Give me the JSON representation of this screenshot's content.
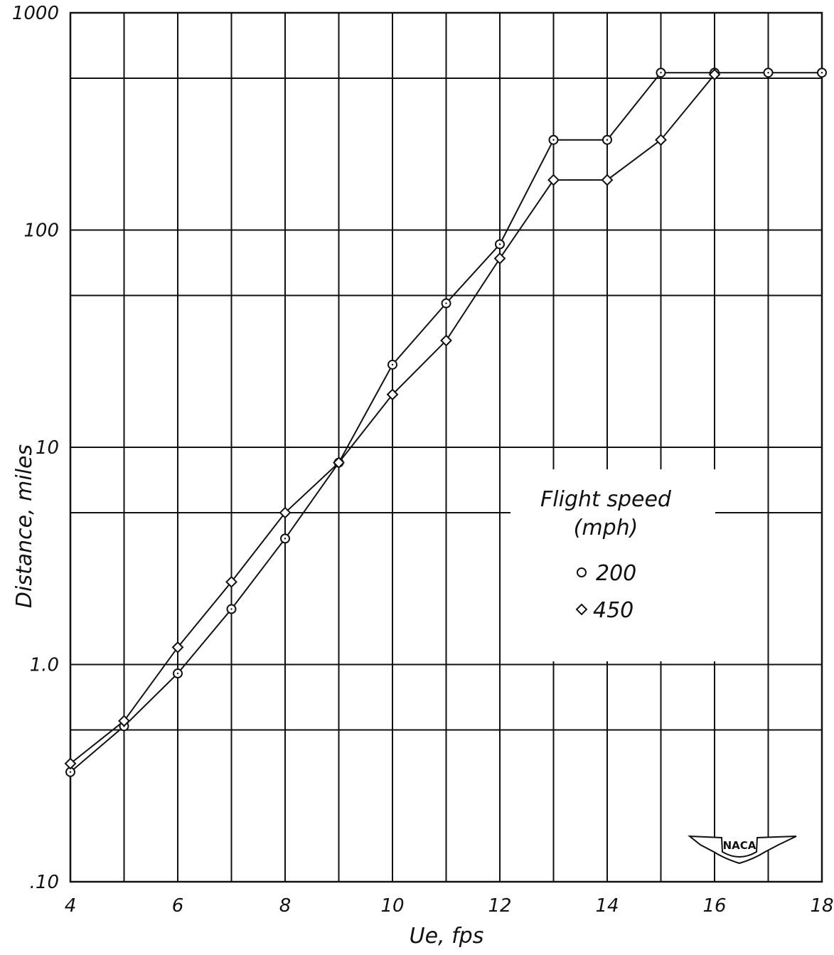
{
  "chart_data": {
    "type": "line",
    "title": "",
    "xlabel": "Ue, fps",
    "ylabel": "Distance, miles",
    "xlim": [
      4,
      18
    ],
    "ylim": [
      0.1,
      1000
    ],
    "y_scale": "log",
    "grid": true,
    "x_ticks": [
      4,
      6,
      8,
      10,
      12,
      14,
      16,
      18
    ],
    "x_tick_labels": [
      "4",
      "6",
      "8",
      "10",
      "12",
      "14",
      "16",
      "18"
    ],
    "y_ticks": [
      0.1,
      1,
      10,
      100,
      1000
    ],
    "y_tick_labels": [
      ".10",
      "1.0",
      "10",
      "100",
      "1000"
    ],
    "legend": {
      "title_line1": "Flight speed",
      "title_line2": "(mph)",
      "placement": "center-right"
    },
    "series": [
      {
        "name": "200",
        "marker": "circle",
        "x": [
          4,
          5,
          6,
          7,
          8,
          9,
          10,
          11,
          12,
          13,
          14,
          15,
          16,
          17,
          18
        ],
        "y": [
          0.32,
          0.52,
          0.91,
          1.8,
          3.8,
          8.5,
          24,
          46,
          86,
          260,
          260,
          530,
          530,
          530,
          530
        ]
      },
      {
        "name": "450",
        "marker": "diamond",
        "x": [
          4,
          5,
          6,
          7,
          8,
          9,
          10,
          11,
          12,
          13,
          14,
          15,
          16
        ],
        "y": [
          0.35,
          0.55,
          1.2,
          2.4,
          5.0,
          8.5,
          17.5,
          31,
          74,
          170,
          170,
          260,
          520
        ]
      }
    ],
    "logo": "NACA"
  }
}
